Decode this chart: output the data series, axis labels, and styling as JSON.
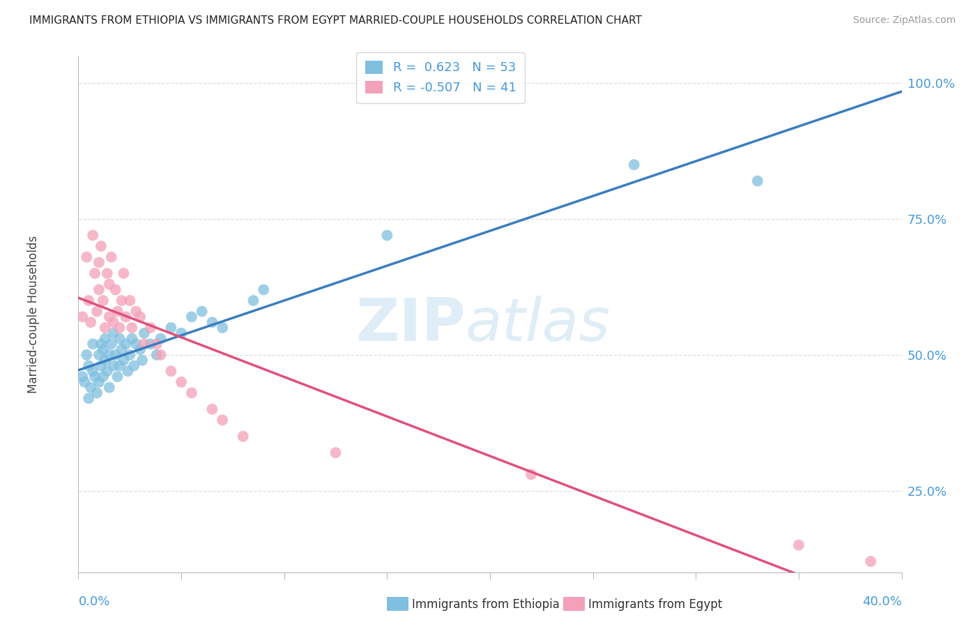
{
  "title": "IMMIGRANTS FROM ETHIOPIA VS IMMIGRANTS FROM EGYPT MARRIED-COUPLE HOUSEHOLDS CORRELATION CHART",
  "source": "Source: ZipAtlas.com",
  "ylabel": "Married-couple Households",
  "y_ticks": [
    25.0,
    50.0,
    75.0,
    100.0
  ],
  "y_tick_labels": [
    "25.0%",
    "50.0%",
    "75.0%",
    "100.0%"
  ],
  "xlim": [
    0.0,
    40.0
  ],
  "ylim": [
    10.0,
    105.0
  ],
  "legend_ethiopia": "R =  0.623   N = 53",
  "legend_egypt": "R = -0.507   N = 41",
  "color_ethiopia": "#7fbfdf",
  "color_egypt": "#f4a0b8",
  "color_line_ethiopia": "#3a7dbf",
  "color_line_egypt": "#e0507a",
  "ethiopia_x": [
    0.2,
    0.3,
    0.4,
    0.5,
    0.5,
    0.6,
    0.7,
    0.7,
    0.8,
    0.9,
    1.0,
    1.0,
    1.1,
    1.1,
    1.2,
    1.2,
    1.3,
    1.3,
    1.4,
    1.5,
    1.5,
    1.6,
    1.7,
    1.7,
    1.8,
    1.9,
    2.0,
    2.0,
    2.1,
    2.2,
    2.3,
    2.4,
    2.5,
    2.6,
    2.7,
    2.8,
    3.0,
    3.1,
    3.2,
    3.5,
    3.8,
    4.0,
    4.5,
    5.0,
    5.5,
    6.0,
    6.5,
    7.0,
    8.5,
    9.0,
    15.0,
    27.0,
    33.0
  ],
  "ethiopia_y": [
    46,
    45,
    50,
    42,
    48,
    44,
    52,
    47,
    46,
    43,
    50,
    45,
    48,
    52,
    51,
    46,
    53,
    49,
    47,
    50,
    44,
    52,
    48,
    54,
    50,
    46,
    53,
    48,
    51,
    49,
    52,
    47,
    50,
    53,
    48,
    52,
    51,
    49,
    54,
    52,
    50,
    53,
    55,
    54,
    57,
    58,
    56,
    55,
    60,
    62,
    72,
    85,
    82
  ],
  "egypt_x": [
    0.2,
    0.4,
    0.5,
    0.6,
    0.7,
    0.8,
    0.9,
    1.0,
    1.0,
    1.1,
    1.2,
    1.3,
    1.4,
    1.5,
    1.5,
    1.6,
    1.7,
    1.8,
    1.9,
    2.0,
    2.1,
    2.2,
    2.3,
    2.5,
    2.6,
    2.8,
    3.0,
    3.2,
    3.5,
    3.8,
    4.0,
    4.5,
    5.0,
    5.5,
    6.5,
    7.0,
    8.0,
    12.5,
    22.0,
    35.0,
    38.5
  ],
  "egypt_y": [
    57,
    68,
    60,
    56,
    72,
    65,
    58,
    62,
    67,
    70,
    60,
    55,
    65,
    57,
    63,
    68,
    56,
    62,
    58,
    55,
    60,
    65,
    57,
    60,
    55,
    58,
    57,
    52,
    55,
    52,
    50,
    47,
    45,
    43,
    40,
    38,
    35,
    32,
    28,
    15,
    12
  ],
  "watermark_zip": "ZIP",
  "watermark_atlas": "atlas",
  "background_color": "#ffffff",
  "grid_color": "#dddddd"
}
